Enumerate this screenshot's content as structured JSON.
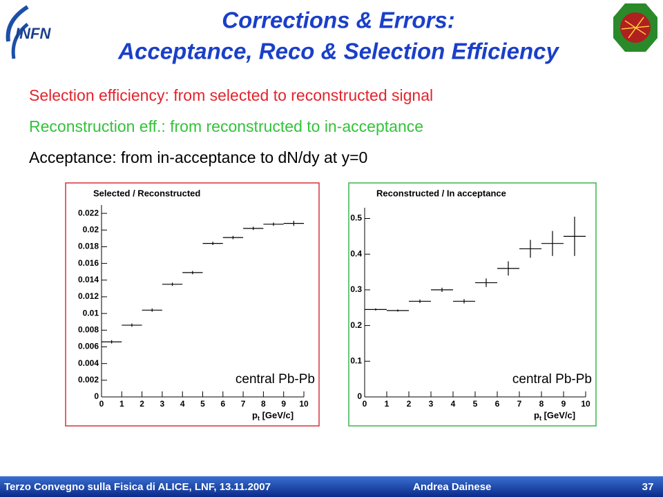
{
  "title": [
    "Corrections & Errors:",
    "Acceptance, Reco & Selection Efficiency"
  ],
  "logo": "INFN",
  "bullets": [
    "Selection efficiency: from selected to reconstructed signal",
    "Reconstruction eff.: from reconstructed to in-acceptance",
    "Acceptance: from in-acceptance to dN/dy at y=0"
  ],
  "footer": {
    "event": "Terzo Convegno sulla Fisica di ALICE, LNF, 13.11.2007",
    "author": "Andrea Dainese",
    "page": "37"
  },
  "chart_data": [
    {
      "type": "histogram",
      "title": "Selected / Reconstructed",
      "annotation": "central Pb-Pb",
      "xlabel": [
        "p",
        "t",
        " [GeV/c]"
      ],
      "bins": [
        0,
        1,
        2,
        3,
        4,
        5,
        6,
        7,
        8,
        9,
        10
      ],
      "values": [
        0.0066,
        0.0086,
        0.0104,
        0.0135,
        0.0149,
        0.0184,
        0.0191,
        0.0202,
        0.0207,
        0.0208
      ],
      "errors": [
        0.0002,
        0.0002,
        0.0002,
        0.0002,
        0.0002,
        0.0002,
        0.0002,
        0.0002,
        0.0002,
        0.0003
      ],
      "color": "#000000",
      "xlim": [
        0,
        10
      ],
      "xticks": [
        0,
        1,
        2,
        3,
        4,
        5,
        6,
        7,
        8,
        9,
        10
      ],
      "ylim": [
        0,
        0.023
      ],
      "yticks": [
        0,
        0.002,
        0.004,
        0.006,
        0.008,
        0.01,
        0.012,
        0.014,
        0.016,
        0.018,
        0.02,
        0.022
      ],
      "frame_color": "#d9303a"
    },
    {
      "type": "histogram",
      "title": "Reconstructed / In acceptance",
      "annotation": "central Pb-Pb",
      "xlabel": [
        "p",
        "t",
        " [GeV/c]"
      ],
      "bins": [
        0,
        1,
        2,
        3,
        4,
        5,
        6,
        7,
        8,
        9,
        10
      ],
      "values": [
        0.245,
        0.242,
        0.268,
        0.3,
        0.268,
        0.32,
        0.36,
        0.415,
        0.43,
        0.45
      ],
      "errors": [
        0.003,
        0.003,
        0.005,
        0.006,
        0.006,
        0.012,
        0.02,
        0.025,
        0.035,
        0.055
      ],
      "color": "#000000",
      "xlim": [
        0,
        10
      ],
      "xticks": [
        0,
        1,
        2,
        3,
        4,
        5,
        6,
        7,
        8,
        9,
        10
      ],
      "ylim": [
        0,
        0.53
      ],
      "yticks": [
        0,
        0.1,
        0.2,
        0.3,
        0.4,
        0.5
      ],
      "frame_color": "#3cb44b"
    }
  ]
}
